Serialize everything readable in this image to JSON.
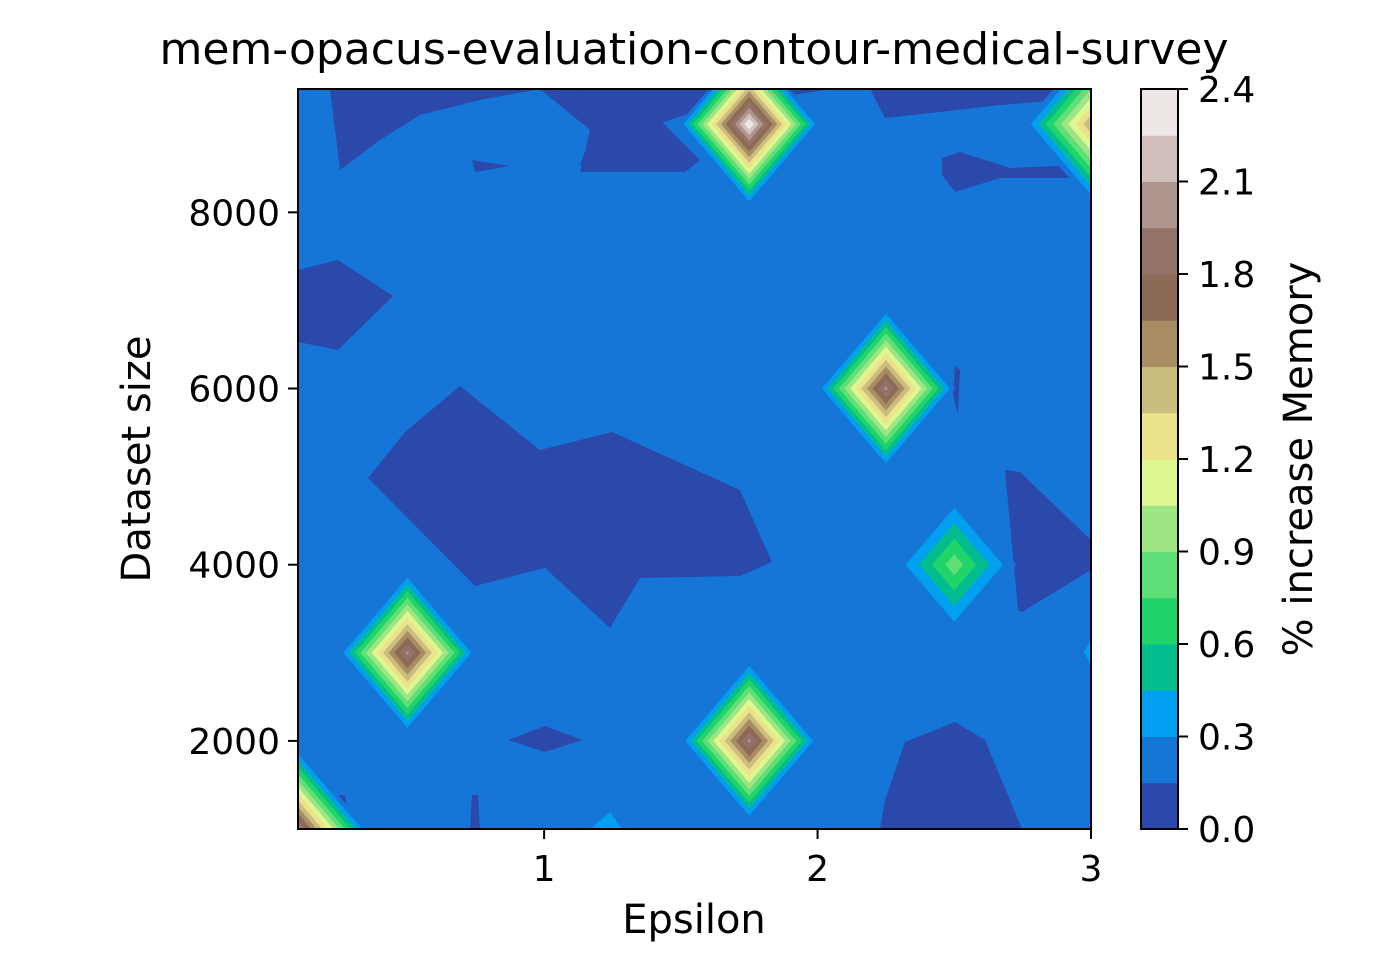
{
  "chart_data": {
    "type": "contour",
    "title": "mem-opacus-evaluation-contour-medical-survey",
    "xlabel": "Epsilon",
    "ylabel": "Dataset size",
    "colorbar_label": "% increase Memory",
    "xlim": [
      0.1,
      3.0
    ],
    "ylim": [
      1000,
      9400
    ],
    "xticks": [
      1,
      2,
      3
    ],
    "xtick_labels": [
      "1",
      "2",
      "3"
    ],
    "yticks": [
      2000,
      4000,
      6000,
      8000
    ],
    "ytick_labels": [
      "2000",
      "4000",
      "6000",
      "8000"
    ],
    "colorbar_ticks": [
      0.0,
      0.3,
      0.6,
      0.9,
      1.2,
      1.5,
      1.8,
      2.1,
      2.4
    ],
    "colorbar_tick_labels": [
      "0.0",
      "0.3",
      "0.6",
      "0.9",
      "1.2",
      "1.5",
      "1.8",
      "2.1",
      "2.4"
    ],
    "levels": [
      0.0,
      0.15,
      0.3,
      0.45,
      0.6,
      0.75,
      0.9,
      1.05,
      1.2,
      1.35,
      1.5,
      1.65,
      1.8,
      1.95,
      2.1,
      2.25,
      2.4
    ],
    "level_colors": [
      "#2a49ab",
      "#1676d8",
      "#009ff0",
      "#04bd8f",
      "#21d46a",
      "#5fdf78",
      "#9ee583",
      "#dff791",
      "#ece28c",
      "#cbbd7e",
      "#a88c63",
      "#8d6a56",
      "#937268",
      "#ae968f",
      "#d1bfbb",
      "#ede8e6"
    ],
    "peaks": [
      {
        "epsilon": 0.5,
        "dataset_size": 3000,
        "value": 2.0
      },
      {
        "epsilon": 1.75,
        "dataset_size": 2000,
        "value": 2.0
      },
      {
        "epsilon": 2.25,
        "dataset_size": 6000,
        "value": 2.0
      },
      {
        "epsilon": 2.5,
        "dataset_size": 4000,
        "value": 0.85
      },
      {
        "epsilon": 1.75,
        "dataset_size": 9000,
        "value": 2.4
      },
      {
        "epsilon": 3.0,
        "dataset_size": 9000,
        "value": 1.5
      },
      {
        "epsilon": 0.1,
        "dataset_size": 1000,
        "value": 2.0
      }
    ],
    "low_regions": [
      {
        "name": "upper-band",
        "range": [
          0.0,
          0.15
        ]
      },
      {
        "name": "middle-blob",
        "range": [
          0.0,
          0.15
        ]
      },
      {
        "name": "left-blob",
        "range": [
          0.0,
          0.15
        ]
      },
      {
        "name": "lower-right-blob",
        "range": [
          0.0,
          0.15
        ]
      }
    ],
    "background_range": [
      0.15,
      0.3
    ],
    "grid": false
  }
}
